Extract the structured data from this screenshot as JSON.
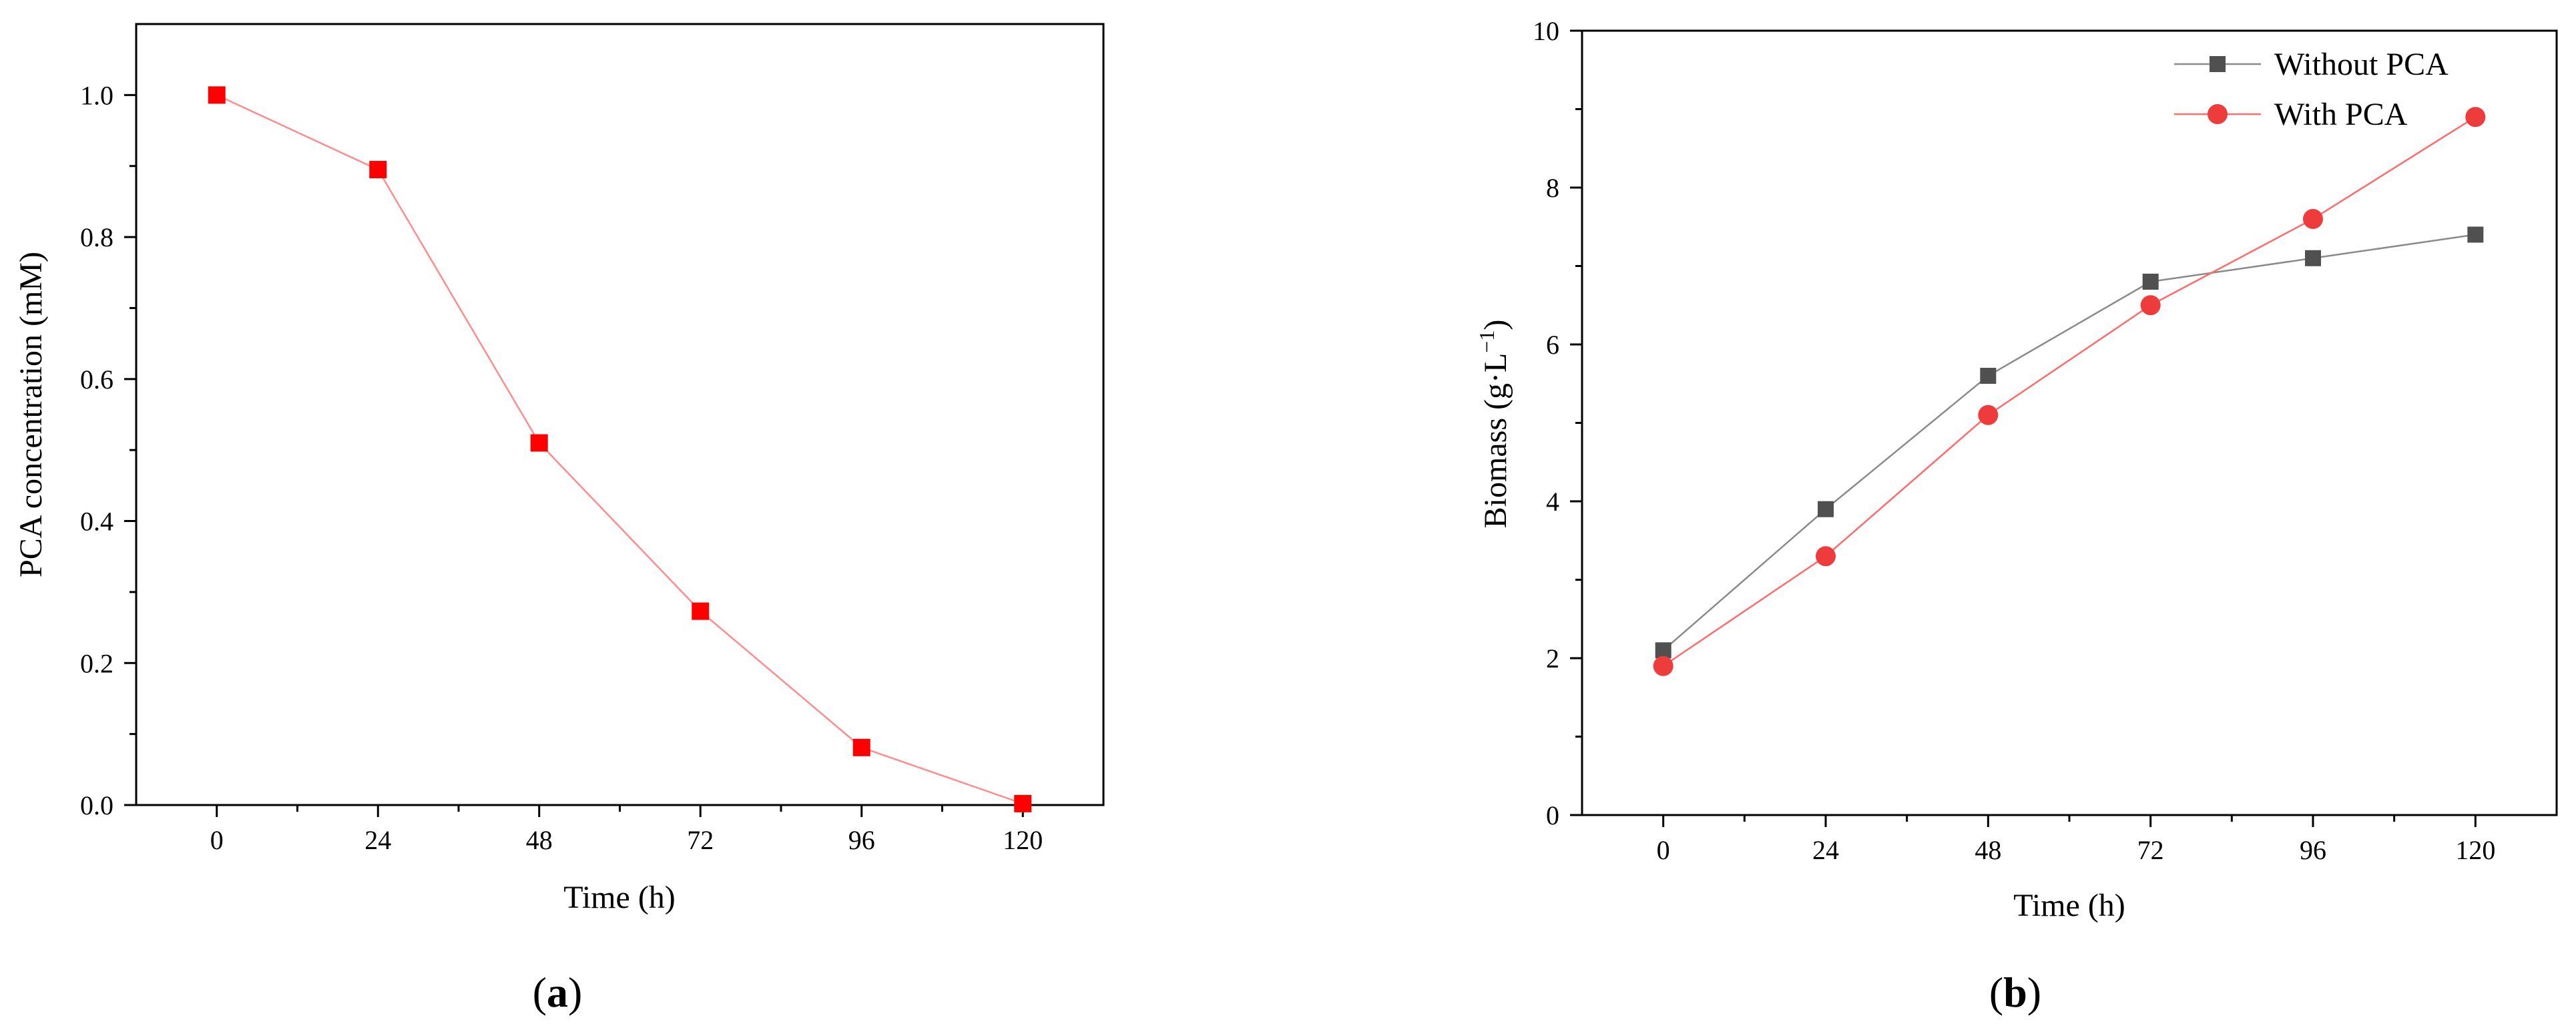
{
  "chart_data": [
    {
      "type": "line",
      "panel_label": "a",
      "xlabel": "Time (h)",
      "ylabel": "PCA concentration (mM)",
      "x": [
        0,
        24,
        48,
        72,
        96,
        120
      ],
      "xlim": [
        -12,
        132
      ],
      "xticks": [
        0,
        24,
        48,
        72,
        96,
        120
      ],
      "ylim": [
        0,
        1.1
      ],
      "yticks": [
        0.0,
        0.2,
        0.4,
        0.6,
        0.8,
        1.0
      ],
      "ytick_labels": [
        "0.0",
        "0.2",
        "0.4",
        "0.6",
        "0.8",
        "1.0"
      ],
      "grid": false,
      "series": [
        {
          "values": [
            1.0,
            0.895,
            0.51,
            0.273,
            0.081,
            0.002
          ],
          "marker": "square",
          "marker_color": "#ff0000",
          "line_color": "#ff8c8c"
        }
      ]
    },
    {
      "type": "line",
      "panel_label": "b",
      "xlabel": "Time (h)",
      "ylabel": "Biomass (g·L",
      "ylabel_sup": "−1",
      "ylabel_close": ")",
      "x": [
        0,
        24,
        48,
        72,
        96,
        120
      ],
      "xlim": [
        -12,
        132
      ],
      "xticks": [
        0,
        24,
        48,
        72,
        96,
        120
      ],
      "ylim": [
        0,
        10
      ],
      "yticks": [
        0,
        2,
        4,
        6,
        8,
        10
      ],
      "ytick_labels": [
        "0",
        "2",
        "4",
        "6",
        "8",
        "10"
      ],
      "grid": false,
      "legend_position": "top-right",
      "series": [
        {
          "name": "Without PCA",
          "values": [
            2.1,
            3.9,
            5.6,
            6.8,
            7.1,
            7.4
          ],
          "marker": "square",
          "marker_color": "#505050",
          "line_color": "#8a8a8a"
        },
        {
          "name": "With PCA",
          "values": [
            1.9,
            3.3,
            5.1,
            6.5,
            7.6,
            8.9
          ],
          "marker": "circle",
          "marker_color": "#ee3b3b",
          "line_color": "#ff6b6b"
        }
      ]
    }
  ]
}
